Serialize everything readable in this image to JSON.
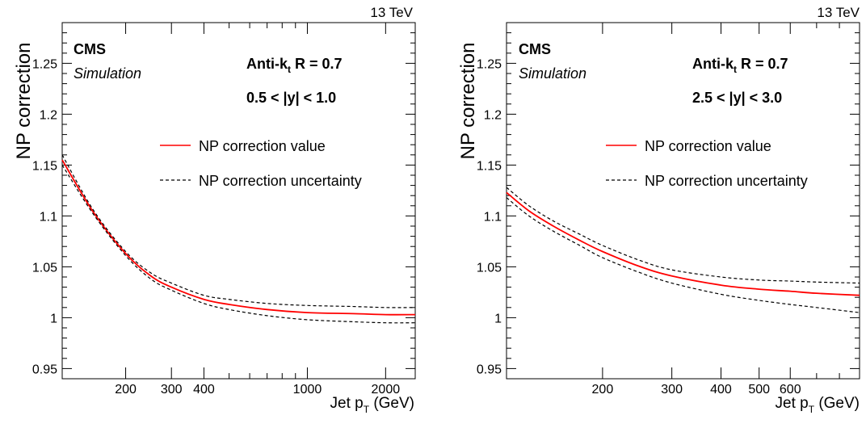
{
  "chart_data": [
    {
      "type": "line",
      "energy_label": "13 TeV",
      "experiment": "CMS",
      "experiment_sub": "Simulation",
      "algo_prefix": "Anti-k",
      "algo_sub": "t",
      "algo_suffix": " R = 0.7",
      "rapidity": "0.5 < |y| < 1.0",
      "ylabel": "NP correction",
      "xlabel_prefix": "Jet p",
      "xlabel_sub": "T",
      "xlabel_suffix": " (GeV)",
      "xscale": "log",
      "xlim": [
        114,
        2600
      ],
      "ylim": [
        0.94,
        1.29
      ],
      "xticks": [
        200,
        300,
        400,
        1000,
        2000
      ],
      "xtick_labels": [
        "200",
        "300",
        "400",
        "1000",
        "2000"
      ],
      "yticks": [
        0.95,
        1.0,
        1.05,
        1.1,
        1.15,
        1.2,
        1.25
      ],
      "ytick_labels": [
        "0.95",
        "1",
        "1.05",
        "1.1",
        "1.15",
        "1.2",
        "1.25"
      ],
      "legend": [
        {
          "label": "NP correction value",
          "style": "solid",
          "color": "#ff0000"
        },
        {
          "label": "NP correction uncertainty",
          "style": "dashed",
          "color": "#000000"
        }
      ],
      "series": [
        {
          "name": "NP correction value",
          "color": "#ff0000",
          "x": [
            114,
            150,
            200,
            250,
            300,
            400,
            500,
            700,
            1000,
            1500,
            2000,
            2600
          ],
          "y": [
            1.155,
            1.104,
            1.063,
            1.041,
            1.03,
            1.018,
            1.013,
            1.008,
            1.005,
            1.004,
            1.003,
            1.003
          ]
        },
        {
          "name": "NP correction uncertainty",
          "color": "#000000",
          "dashed": true,
          "x": [
            114,
            150,
            200,
            250,
            300,
            400,
            500,
            700,
            1000,
            1500,
            2000,
            2600
          ],
          "y": [
            1.16,
            1.106,
            1.065,
            1.044,
            1.034,
            1.022,
            1.018,
            1.014,
            1.012,
            1.011,
            1.01,
            1.01
          ]
        },
        {
          "name": "NP correction uncertainty",
          "color": "#000000",
          "dashed": true,
          "x": [
            114,
            150,
            200,
            250,
            300,
            400,
            500,
            700,
            1000,
            1500,
            2000,
            2600
          ],
          "y": [
            1.15,
            1.102,
            1.061,
            1.038,
            1.027,
            1.014,
            1.008,
            1.002,
            0.998,
            0.996,
            0.995,
            0.995
          ]
        }
      ]
    },
    {
      "type": "line",
      "energy_label": "13 TeV",
      "experiment": "CMS",
      "experiment_sub": "Simulation",
      "algo_prefix": "Anti-k",
      "algo_sub": "t",
      "algo_suffix": " R = 0.7",
      "rapidity": "2.5 < |y| < 3.0",
      "ylabel": "NP correction",
      "xlabel_prefix": "Jet p",
      "xlabel_sub": "T",
      "xlabel_suffix": " (GeV)",
      "xscale": "log",
      "xlim": [
        114,
        900
      ],
      "ylim": [
        0.94,
        1.29
      ],
      "xticks": [
        200,
        300,
        400,
        500,
        600
      ],
      "xtick_labels": [
        "200",
        "300",
        "400",
        "500",
        "600"
      ],
      "yticks": [
        0.95,
        1.0,
        1.05,
        1.1,
        1.15,
        1.2,
        1.25
      ],
      "ytick_labels": [
        "0.95",
        "1",
        "1.05",
        "1.1",
        "1.15",
        "1.2",
        "1.25"
      ],
      "legend": [
        {
          "label": "NP correction value",
          "style": "solid",
          "color": "#ff0000"
        },
        {
          "label": "NP correction uncertainty",
          "style": "dashed",
          "color": "#000000"
        }
      ],
      "series": [
        {
          "name": "NP correction value",
          "color": "#ff0000",
          "x": [
            114,
            130,
            150,
            175,
            200,
            250,
            300,
            400,
            500,
            600,
            700,
            900
          ],
          "y": [
            1.123,
            1.105,
            1.09,
            1.076,
            1.065,
            1.05,
            1.041,
            1.032,
            1.028,
            1.026,
            1.024,
            1.022
          ]
        },
        {
          "name": "NP correction uncertainty",
          "color": "#000000",
          "dashed": true,
          "x": [
            114,
            130,
            150,
            175,
            200,
            250,
            300,
            400,
            500,
            600,
            700,
            900
          ],
          "y": [
            1.128,
            1.11,
            1.095,
            1.082,
            1.071,
            1.056,
            1.047,
            1.04,
            1.037,
            1.036,
            1.035,
            1.034
          ]
        },
        {
          "name": "NP correction uncertainty",
          "color": "#000000",
          "dashed": true,
          "x": [
            114,
            130,
            150,
            175,
            200,
            250,
            300,
            400,
            500,
            600,
            700,
            900
          ],
          "y": [
            1.118,
            1.1,
            1.085,
            1.071,
            1.059,
            1.044,
            1.034,
            1.023,
            1.017,
            1.013,
            1.01,
            1.005
          ]
        }
      ]
    }
  ]
}
